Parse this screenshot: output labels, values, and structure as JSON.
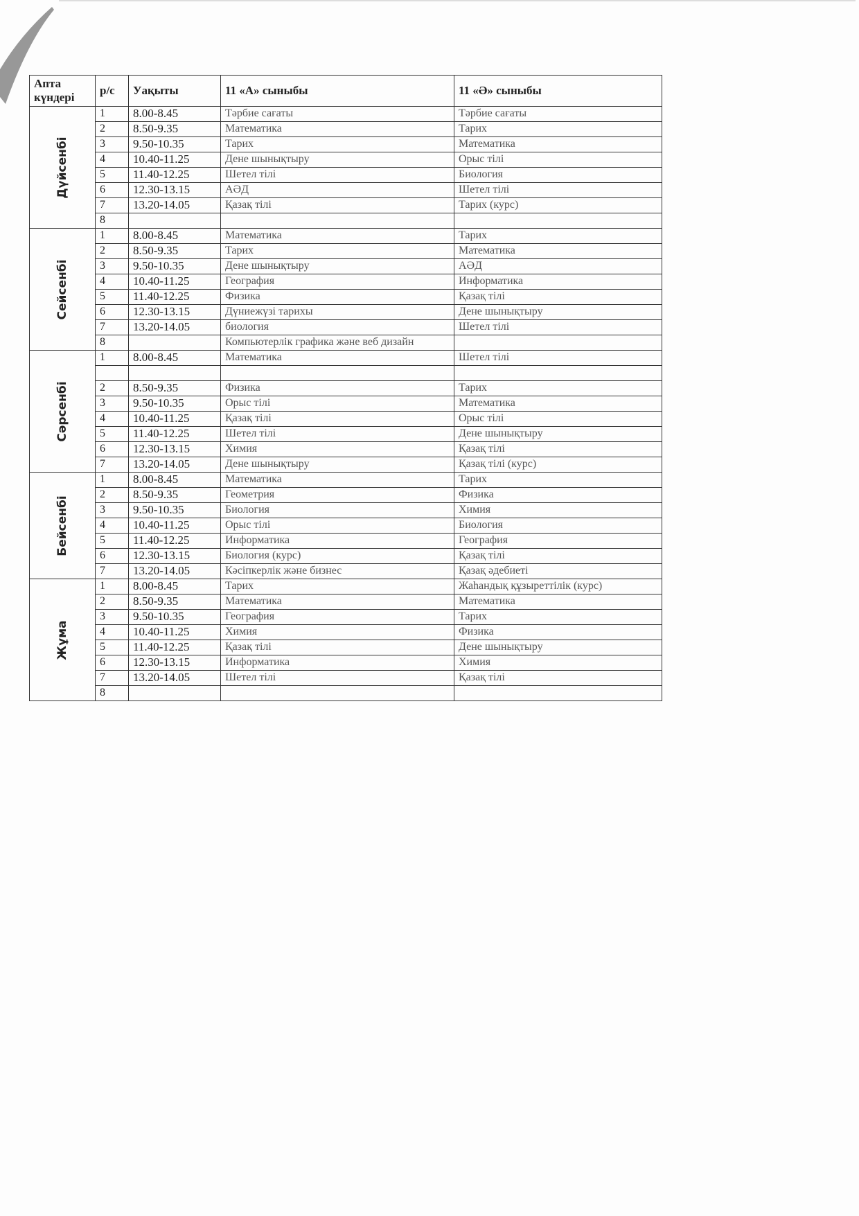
{
  "headers": {
    "day": "Апта күндері",
    "num": "р/с",
    "time": "Уақыты",
    "class_a": "11 «А» сыныбы",
    "class_b": "11 «Ә» сыныбы"
  },
  "days": [
    {
      "name": "Дүйсенбі",
      "rows": [
        {
          "n": "1",
          "time": "8.00-8.45",
          "a": "Тәрбие сағаты",
          "b": "Тәрбие сағаты"
        },
        {
          "n": "2",
          "time": "8.50-9.35",
          "a": "Математика",
          "b": "Тарих"
        },
        {
          "n": "3",
          "time": "9.50-10.35",
          "a": "Тарих",
          "b": "Математика"
        },
        {
          "n": "4",
          "time": "10.40-11.25",
          "a": "Дене шынықтыру",
          "b": "Орыс тілі"
        },
        {
          "n": "5",
          "time": "11.40-12.25",
          "a": "Шетел тілі",
          "b": "Биология"
        },
        {
          "n": "6",
          "time": "12.30-13.15",
          "a": "АӘД",
          "b": "Шетел тілі"
        },
        {
          "n": "7",
          "time": "13.20-14.05",
          "a": "Қазақ тілі",
          "b": "Тарих (курс)"
        },
        {
          "n": "8",
          "time": "",
          "a": "",
          "b": ""
        }
      ]
    },
    {
      "name": "Сейсенбі",
      "rows": [
        {
          "n": "1",
          "time": "8.00-8.45",
          "a": "Математика",
          "b": "Тарих"
        },
        {
          "n": "2",
          "time": "8.50-9.35",
          "a": "Тарих",
          "b": "Математика"
        },
        {
          "n": "3",
          "time": "9.50-10.35",
          "a": "Дене шынықтыру",
          "b": "АӘД"
        },
        {
          "n": "4",
          "time": "10.40-11.25",
          "a": "География",
          "b": "Информатика"
        },
        {
          "n": "5",
          "time": "11.40-12.25",
          "a": "Физика",
          "b": "Қазақ тілі"
        },
        {
          "n": "6",
          "time": "12.30-13.15",
          "a": "Дүниежүзі тарихы",
          "b": "Дене шынықтыру"
        },
        {
          "n": "7",
          "time": "13.20-14.05",
          "a": "биология",
          "b": "Шетел тілі"
        },
        {
          "n": "8",
          "time": "",
          "a": "Компьютерлік графика және веб дизайн",
          "b": ""
        }
      ]
    },
    {
      "name": "Сәрсенбі",
      "rows": [
        {
          "n": "1",
          "time": "8.00-8.45",
          "a": "Математика",
          "b": "Шетел тілі"
        },
        {
          "n": "",
          "time": "",
          "a": "",
          "b": ""
        },
        {
          "n": "2",
          "time": "8.50-9.35",
          "a": "Физика",
          "b": "Тарих"
        },
        {
          "n": "3",
          "time": "9.50-10.35",
          "a": "Орыс тілі",
          "b": "Математика"
        },
        {
          "n": "4",
          "time": "10.40-11.25",
          "a": "Қазақ тілі",
          "b": "Орыс тілі"
        },
        {
          "n": "5",
          "time": "11.40-12.25",
          "a": "Шетел тілі",
          "b": "Дене шынықтыру"
        },
        {
          "n": "6",
          "time": "12.30-13.15",
          "a": "Химия",
          "b": "Қазақ тілі"
        },
        {
          "n": "7",
          "time": "13.20-14.05",
          "a": "Дене шынықтыру",
          "b": "Қазақ тілі (курс)"
        }
      ]
    },
    {
      "name": "Бейсенбі",
      "rows": [
        {
          "n": "1",
          "time": "8.00-8.45",
          "a": "Математика",
          "b": "Тарих"
        },
        {
          "n": "2",
          "time": "8.50-9.35",
          "a": "Геометрия",
          "b": "Физика"
        },
        {
          "n": "3",
          "time": "9.50-10.35",
          "a": "Биология",
          "b": "Химия"
        },
        {
          "n": "4",
          "time": "10.40-11.25",
          "a": "Орыс тілі",
          "b": "Биология"
        },
        {
          "n": "5",
          "time": "11.40-12.25",
          "a": "Информатика",
          "b": "География"
        },
        {
          "n": "6",
          "time": "12.30-13.15",
          "a": "Биология (курс)",
          "b": "Қазақ тілі"
        },
        {
          "n": "7",
          "time": "13.20-14.05",
          "a": "Кәсіпкерлік және бизнес",
          "b": "Қазақ әдебиеті"
        }
      ]
    },
    {
      "name": "Жұма",
      "rows": [
        {
          "n": "1",
          "time": "8.00-8.45",
          "a": "Тарих",
          "b": "Жаһандық құзыреттілік (курс)"
        },
        {
          "n": "2",
          "time": "8.50-9.35",
          "a": "Математика",
          "b": "Математика"
        },
        {
          "n": "3",
          "time": "9.50-10.35",
          "a": "География",
          "b": "Тарих"
        },
        {
          "n": "4",
          "time": "10.40-11.25",
          "a": "Химия",
          "b": "Физика"
        },
        {
          "n": "5",
          "time": "11.40-12.25",
          "a": "Қазақ тілі",
          "b": "Дене шынықтыру"
        },
        {
          "n": "6",
          "time": "12.30-13.15",
          "a": "Информатика",
          "b": "Химия"
        },
        {
          "n": "7",
          "time": "13.20-14.05",
          "a": "Шетел тілі",
          "b": "Қазақ тілі"
        },
        {
          "n": "8",
          "time": "",
          "a": "",
          "b": ""
        }
      ]
    }
  ]
}
